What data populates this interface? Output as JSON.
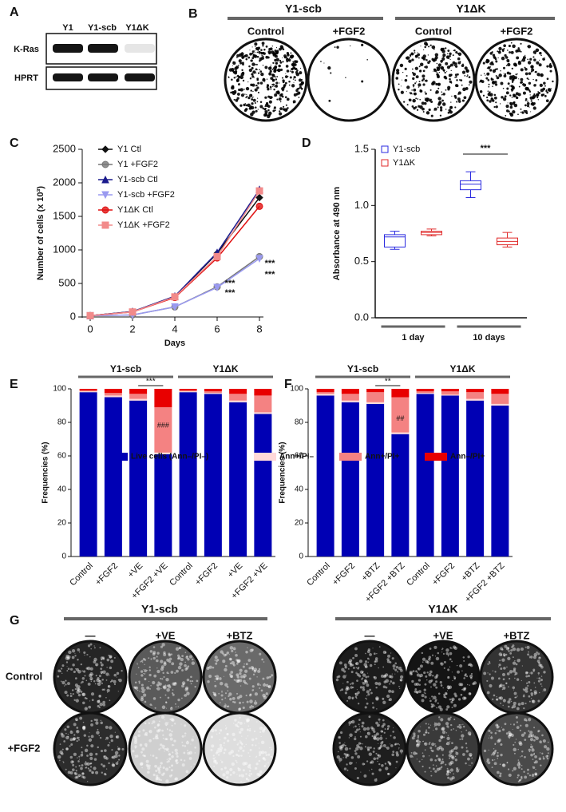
{
  "panel_labels": [
    "A",
    "B",
    "C",
    "D",
    "E",
    "F",
    "G"
  ],
  "blot": {
    "columns": [
      "Y1",
      "Y1-scb",
      "Y1ΔK"
    ],
    "rows": [
      "K-Ras",
      "HPRT"
    ]
  },
  "colonies": {
    "groups": [
      "Y1-scb",
      "Y1ΔK"
    ],
    "columns": [
      "Control",
      "+FGF2",
      "Control",
      "+FGF2"
    ]
  },
  "chart_data": [
    {
      "type": "line",
      "xlabel": "Days",
      "ylabel": "Number of cells (x 10³)",
      "x": [
        0,
        2,
        4,
        6,
        8
      ],
      "xlim": [
        0,
        8
      ],
      "xticks": [
        0,
        2,
        4,
        6,
        8
      ],
      "ylim": [
        0,
        2500
      ],
      "yticks": [
        0,
        500,
        1000,
        1500,
        2000,
        2500
      ],
      "series": [
        {
          "name": "Y1 Ctl",
          "color": "#111111",
          "marker": "diamond",
          "values": [
            20,
            80,
            300,
            950,
            1780
          ]
        },
        {
          "name": "Y1 +FGF2",
          "color": "#777777",
          "marker": "circle",
          "values": [
            20,
            30,
            150,
            450,
            900
          ]
        },
        {
          "name": "Y1-scb Ctl",
          "color": "#1a1a8c",
          "marker": "triangle",
          "values": [
            20,
            80,
            310,
            960,
            1900
          ]
        },
        {
          "name": "Y1-scb +FGF2",
          "color": "#9a9af0",
          "marker": "down-triangle",
          "values": [
            20,
            30,
            150,
            440,
            870
          ]
        },
        {
          "name": "Y1ΔK Ctl",
          "color": "#e01010",
          "marker": "circle",
          "values": [
            20,
            75,
            290,
            880,
            1650
          ]
        },
        {
          "name": "Y1ΔK +FGF2",
          "color": "#f28a8a",
          "marker": "square",
          "values": [
            20,
            75,
            300,
            900,
            1880
          ]
        }
      ],
      "annotations": [
        {
          "text": "***",
          "color": "#111111"
        },
        {
          "text": "***",
          "color": "#4aa3df"
        },
        {
          "text": "***",
          "color": "#111111"
        },
        {
          "text": "***",
          "color": "#4aa3df"
        }
      ]
    },
    {
      "type": "box",
      "ylabel": "Absorbance at 490 nm",
      "categories": [
        "1 day",
        "10 days"
      ],
      "ylim": [
        0,
        1.5
      ],
      "yticks": [
        {
          "value": 0,
          "label": "0.0"
        },
        0.5,
        {
          "value": 1,
          "label": "1.0"
        },
        1.5
      ],
      "series": [
        {
          "name": "Y1-scb",
          "color": "#2a2ae0",
          "values": [
            [
              0.61,
              0.63,
              0.72,
              0.74,
              0.77
            ],
            [
              1.07,
              1.14,
              1.19,
              1.22,
              1.3
            ]
          ]
        },
        {
          "name": "Y1ΔK",
          "color": "#e02a2a",
          "values": [
            [
              0.73,
              0.74,
              0.76,
              0.77,
              0.79
            ],
            [
              0.63,
              0.65,
              0.68,
              0.71,
              0.76
            ]
          ]
        }
      ],
      "annotations": [
        {
          "text": "***",
          "color": "#111111"
        }
      ]
    },
    {
      "type": "stacked_bar",
      "ylabel": "Frequencies (%)",
      "groups": [
        "Y1-scb",
        "Y1ΔK"
      ],
      "categories": [
        "Control",
        "+FGF2",
        "+VE",
        "+FGF2 +VE",
        "Control",
        "+FGF2",
        "+VE",
        "+FGF2 +VE"
      ],
      "ylim": [
        0,
        100
      ],
      "yticks": [
        0,
        20,
        40,
        60,
        80,
        100
      ],
      "series": [
        {
          "name": "Live cells (Ann–/PI–)",
          "color": "#0000b4",
          "values": [
            98,
            95,
            93,
            61,
            98,
            97,
            92,
            85
          ]
        },
        {
          "name": "Ann+/PI–",
          "color": "#ffd9d9",
          "values": [
            0.5,
            1,
            1,
            1,
            0.5,
            0.5,
            1,
            1
          ]
        },
        {
          "name": "Ann+/PI+",
          "color": "#f48282",
          "values": [
            0.5,
            1.5,
            3,
            27,
            0.5,
            1,
            4,
            10
          ]
        },
        {
          "name": "Ann–/PI+",
          "color": "#e80000",
          "values": [
            1,
            2.5,
            3,
            11,
            1,
            1.5,
            3,
            4
          ]
        }
      ],
      "annotations": [
        {
          "text": "***",
          "color": "#111111"
        },
        {
          "text": "###",
          "color": "#7a0000"
        }
      ]
    },
    {
      "type": "stacked_bar",
      "ylabel": "Frequencies (%)",
      "groups": [
        "Y1-scb",
        "Y1ΔK"
      ],
      "categories": [
        "Control",
        "+FGF2",
        "+BTZ",
        "+FGF2 +BTZ",
        "Control",
        "+FGF2",
        "+BTZ",
        "+FGF2 +BTZ"
      ],
      "ylim": [
        0,
        100
      ],
      "yticks": [
        0,
        20,
        40,
        60,
        80,
        100
      ],
      "series": [
        {
          "color": "#0000b4",
          "values": [
            96,
            92,
            91,
            73,
            97,
            96,
            93,
            90
          ]
        },
        {
          "color": "#ffd9d9",
          "values": [
            1,
            1,
            1,
            1,
            0.5,
            0.5,
            1,
            1
          ]
        },
        {
          "color": "#f48282",
          "values": [
            1,
            4,
            6,
            21,
            1,
            2,
            4,
            6
          ]
        },
        {
          "color": "#e80000",
          "values": [
            2,
            3,
            2,
            5,
            1.5,
            1.5,
            2,
            3
          ]
        }
      ],
      "annotations": [
        {
          "text": "**",
          "color": "#111111"
        },
        {
          "text": "##",
          "color": "#7a0000"
        }
      ]
    }
  ],
  "stain": {
    "groups": [
      "Y1-scb",
      "Y1ΔK"
    ],
    "columns": [
      "—",
      "+VE",
      "+BTZ",
      "—",
      "+VE",
      "+BTZ"
    ],
    "rows": [
      "Control",
      "+FGF2"
    ]
  }
}
